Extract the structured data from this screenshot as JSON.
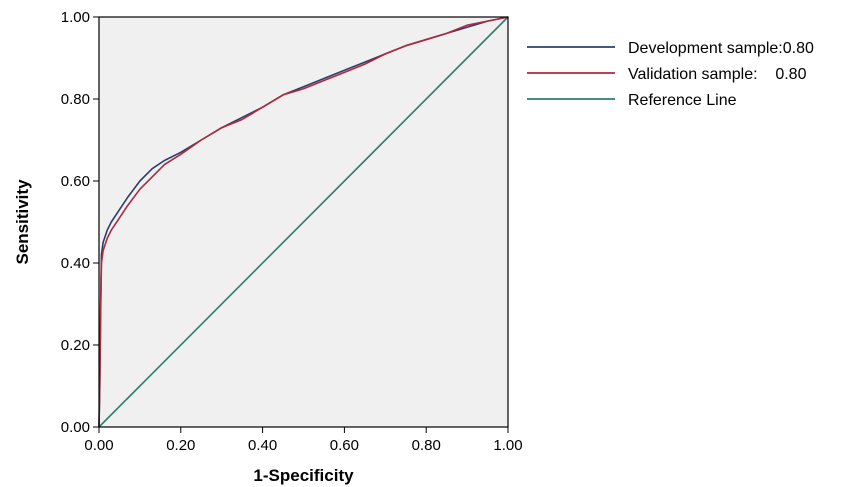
{
  "chart_data": {
    "type": "line",
    "xlabel": "1-Specificity",
    "ylabel": "Sensitivity",
    "xlim": [
      0,
      1
    ],
    "ylim": [
      0,
      1
    ],
    "x_ticks": [
      "0.00",
      "0.20",
      "0.40",
      "0.60",
      "0.80",
      "1.00"
    ],
    "y_ticks": [
      "0.00",
      "0.20",
      "0.40",
      "0.60",
      "0.80",
      "1.00"
    ],
    "grid": false,
    "legend_position": "right",
    "plot_background": "#f0f0f0",
    "series": [
      {
        "name": "Development sample:0.80",
        "color": "#2a3f6e",
        "x": [
          0,
          0.002,
          0.004,
          0.006,
          0.01,
          0.02,
          0.03,
          0.05,
          0.07,
          0.1,
          0.13,
          0.16,
          0.2,
          0.25,
          0.3,
          0.35,
          0.4,
          0.45,
          0.5,
          0.55,
          0.6,
          0.65,
          0.7,
          0.75,
          0.8,
          0.85,
          0.9,
          0.95,
          1.0
        ],
        "y": [
          0,
          0.1,
          0.3,
          0.42,
          0.45,
          0.48,
          0.5,
          0.53,
          0.56,
          0.6,
          0.63,
          0.65,
          0.67,
          0.7,
          0.73,
          0.755,
          0.78,
          0.81,
          0.83,
          0.85,
          0.87,
          0.89,
          0.91,
          0.93,
          0.945,
          0.96,
          0.975,
          0.99,
          1.0
        ]
      },
      {
        "name": "Validation sample:    0.80",
        "color": "#b0283c",
        "x": [
          0,
          0.002,
          0.004,
          0.006,
          0.01,
          0.02,
          0.03,
          0.05,
          0.07,
          0.1,
          0.13,
          0.16,
          0.2,
          0.25,
          0.3,
          0.35,
          0.4,
          0.45,
          0.5,
          0.55,
          0.6,
          0.65,
          0.7,
          0.75,
          0.8,
          0.85,
          0.9,
          0.95,
          1.0
        ],
        "y": [
          0,
          0.12,
          0.28,
          0.4,
          0.43,
          0.46,
          0.48,
          0.51,
          0.54,
          0.58,
          0.61,
          0.64,
          0.665,
          0.7,
          0.73,
          0.75,
          0.78,
          0.81,
          0.825,
          0.845,
          0.865,
          0.885,
          0.91,
          0.93,
          0.945,
          0.96,
          0.98,
          0.99,
          1.0
        ]
      },
      {
        "name": "Reference Line",
        "color": "#2e7d6b",
        "x": [
          0,
          1
        ],
        "y": [
          0,
          1
        ]
      }
    ]
  }
}
